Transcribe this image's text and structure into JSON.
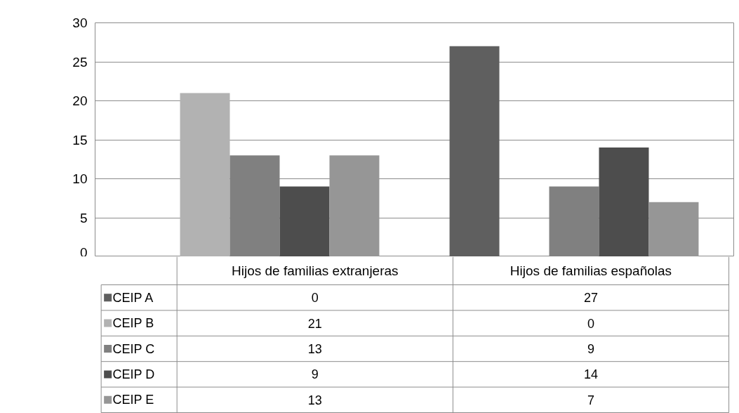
{
  "chart_data": {
    "type": "bar",
    "categories": [
      "Hijos de familias extranjeras",
      "Hijos de familias españolas"
    ],
    "series": [
      {
        "name": "CEIP A",
        "color": "#5f5f5f",
        "values": [
          0,
          27
        ]
      },
      {
        "name": "CEIP B",
        "color": "#b2b2b2",
        "values": [
          21,
          0
        ]
      },
      {
        "name": "CEIP C",
        "color": "#808080",
        "values": [
          13,
          9
        ]
      },
      {
        "name": "CEIP D",
        "color": "#4d4d4d",
        "values": [
          9,
          14
        ]
      },
      {
        "name": "CEIP E",
        "color": "#969696",
        "values": [
          13,
          7
        ]
      }
    ],
    "ylim": [
      0,
      30
    ],
    "yticks": [
      0,
      5,
      10,
      15,
      20,
      25,
      30
    ],
    "grid": "y",
    "legend": "bottom",
    "data_labels": true
  }
}
